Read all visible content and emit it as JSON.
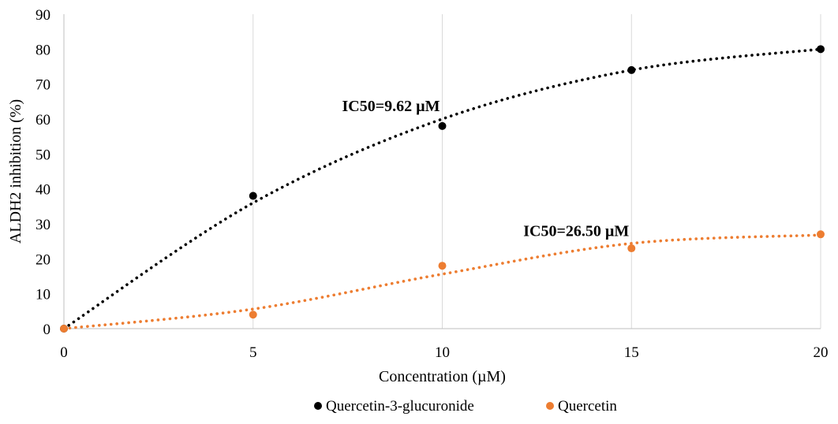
{
  "chart_data": {
    "type": "scatter",
    "x": [
      0,
      5,
      10,
      15,
      20
    ],
    "xlabel": "Concentration (µM)",
    "ylabel": "ALDH2  inhibition (%)",
    "xlim": [
      0,
      20
    ],
    "ylim": [
      0,
      90
    ],
    "xticks": [
      0,
      5,
      10,
      15,
      20
    ],
    "yticks": [
      0,
      10,
      20,
      30,
      40,
      50,
      60,
      70,
      80,
      90
    ],
    "grid": "vertical",
    "legend_position": "bottom",
    "series": [
      {
        "name": "Quercetin-3-glucuronide",
        "color": "#000000",
        "values": [
          0,
          38,
          58,
          74,
          80
        ],
        "trendline": "polynomial-dotted",
        "trend_values": [
          0,
          36,
          60,
          74,
          80
        ]
      },
      {
        "name": "Quercetin",
        "color": "#ed7d31",
        "values": [
          0,
          4,
          18,
          23,
          27
        ],
        "trendline": "polynomial-dotted",
        "trend_values": [
          0,
          5.6,
          15.6,
          24.4,
          26.8
        ]
      }
    ],
    "annotations": [
      {
        "text": "IC50=9.62 µM",
        "x": 10,
        "y": 60
      },
      {
        "text": "IC50=26.50 µM",
        "x": 15,
        "y": 26
      }
    ]
  }
}
